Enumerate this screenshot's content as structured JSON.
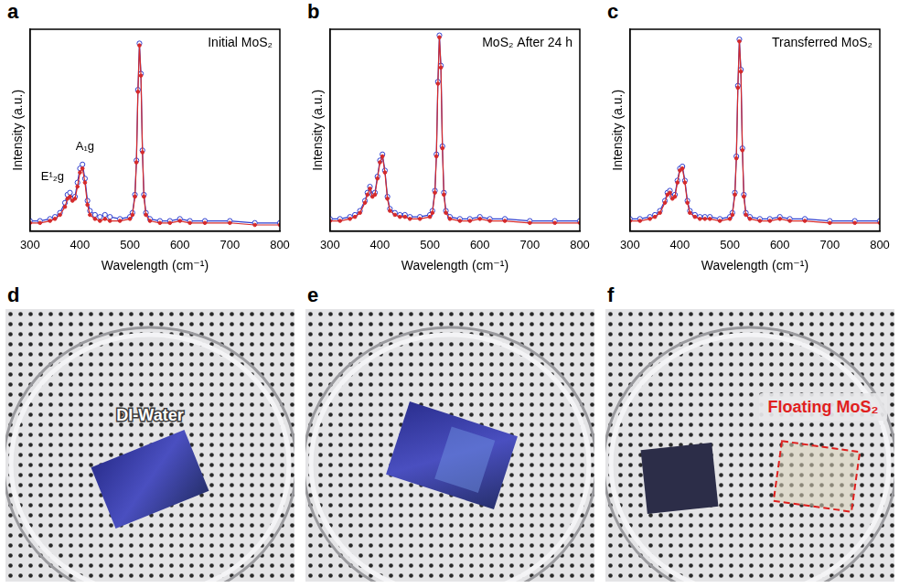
{
  "chart_data": [
    {
      "panel": "a",
      "type": "line",
      "title": "Initial MoS₂",
      "x_label": "Wavelength (cm⁻¹)",
      "y_label": "Intensity (a.u.)",
      "x": [
        300,
        320,
        340,
        350,
        360,
        370,
        375,
        380,
        385,
        390,
        395,
        400,
        405,
        410,
        415,
        420,
        430,
        440,
        450,
        460,
        480,
        500,
        505,
        510,
        513,
        516,
        519,
        522,
        525,
        528,
        532,
        540,
        560,
        580,
        600,
        620,
        650,
        700,
        750,
        800
      ],
      "series": [
        {
          "color": "#d62a2a",
          "marker": "circle",
          "line_style": "solid",
          "values": [
            0.04,
            0.04,
            0.05,
            0.06,
            0.08,
            0.12,
            0.16,
            0.17,
            0.15,
            0.16,
            0.22,
            0.29,
            0.31,
            0.24,
            0.13,
            0.08,
            0.06,
            0.05,
            0.06,
            0.05,
            0.05,
            0.06,
            0.08,
            0.17,
            0.34,
            0.69,
            0.92,
            0.77,
            0.39,
            0.17,
            0.08,
            0.05,
            0.04,
            0.04,
            0.05,
            0.04,
            0.04,
            0.04,
            0.03,
            0.03
          ]
        },
        {
          "color": "#2f3fcf",
          "marker": "open_circle",
          "line_style": "solid",
          "values": [
            0.05,
            0.05,
            0.06,
            0.07,
            0.09,
            0.14,
            0.18,
            0.19,
            0.16,
            0.17,
            0.24,
            0.31,
            0.33,
            0.26,
            0.15,
            0.1,
            0.08,
            0.07,
            0.08,
            0.07,
            0.06,
            0.07,
            0.09,
            0.18,
            0.35,
            0.7,
            0.93,
            0.78,
            0.4,
            0.18,
            0.09,
            0.06,
            0.05,
            0.05,
            0.06,
            0.05,
            0.05,
            0.05,
            0.04,
            0.04
          ]
        }
      ],
      "xlim": [
        300,
        800
      ],
      "xticks": [
        300,
        400,
        500,
        600,
        700,
        800
      ],
      "ylim": [
        0,
        1
      ],
      "tick_labels": "x",
      "grid": false,
      "annotations": [
        {
          "text": "E¹₂g",
          "x": 345,
          "y": 0.27
        },
        {
          "text": "A₁g",
          "x": 410,
          "y": 0.42
        }
      ]
    },
    {
      "panel": "b",
      "type": "line",
      "title": "MoS₂ After 24 h",
      "x_label": "Wavelength (cm⁻¹)",
      "y_label": "Intensity (a.u.)",
      "x": [
        300,
        320,
        340,
        350,
        360,
        370,
        375,
        380,
        385,
        390,
        395,
        400,
        405,
        410,
        415,
        420,
        430,
        440,
        450,
        460,
        480,
        500,
        505,
        510,
        513,
        516,
        519,
        522,
        525,
        528,
        532,
        540,
        560,
        580,
        600,
        620,
        650,
        700,
        750,
        800
      ],
      "series": [
        {
          "color": "#d62a2a",
          "marker": "circle",
          "line_style": "solid",
          "values": [
            0.05,
            0.05,
            0.06,
            0.07,
            0.09,
            0.14,
            0.18,
            0.21,
            0.17,
            0.18,
            0.26,
            0.34,
            0.37,
            0.29,
            0.16,
            0.1,
            0.08,
            0.07,
            0.07,
            0.06,
            0.06,
            0.07,
            0.09,
            0.19,
            0.37,
            0.73,
            0.96,
            0.81,
            0.41,
            0.18,
            0.09,
            0.06,
            0.05,
            0.05,
            0.06,
            0.05,
            0.05,
            0.04,
            0.04,
            0.04
          ]
        },
        {
          "color": "#2f3fcf",
          "marker": "open_circle",
          "line_style": "solid",
          "values": [
            0.06,
            0.06,
            0.07,
            0.08,
            0.1,
            0.15,
            0.19,
            0.22,
            0.18,
            0.19,
            0.27,
            0.35,
            0.38,
            0.3,
            0.17,
            0.11,
            0.09,
            0.08,
            0.08,
            0.07,
            0.07,
            0.08,
            0.1,
            0.2,
            0.38,
            0.74,
            0.97,
            0.82,
            0.42,
            0.19,
            0.1,
            0.07,
            0.06,
            0.06,
            0.07,
            0.06,
            0.06,
            0.05,
            0.05,
            0.05
          ]
        }
      ],
      "xlim": [
        300,
        800
      ],
      "xticks": [
        300,
        400,
        500,
        600,
        700,
        800
      ],
      "ylim": [
        0,
        1
      ],
      "tick_labels": "x",
      "grid": false
    },
    {
      "panel": "c",
      "type": "line",
      "title": "Transferred MoS₂",
      "x_label": "Wavelength (cm⁻¹)",
      "y_label": "Intensity (a.u.)",
      "x": [
        300,
        320,
        340,
        350,
        360,
        370,
        375,
        380,
        385,
        390,
        395,
        400,
        405,
        410,
        415,
        420,
        430,
        440,
        450,
        460,
        480,
        500,
        505,
        510,
        513,
        516,
        519,
        522,
        525,
        528,
        532,
        540,
        560,
        580,
        600,
        620,
        650,
        700,
        750,
        800
      ],
      "series": [
        {
          "color": "#d62a2a",
          "marker": "circle",
          "line_style": "solid",
          "values": [
            0.05,
            0.05,
            0.06,
            0.07,
            0.09,
            0.14,
            0.18,
            0.19,
            0.16,
            0.17,
            0.24,
            0.3,
            0.31,
            0.24,
            0.14,
            0.09,
            0.07,
            0.06,
            0.06,
            0.06,
            0.05,
            0.06,
            0.08,
            0.18,
            0.36,
            0.71,
            0.94,
            0.79,
            0.4,
            0.17,
            0.08,
            0.06,
            0.05,
            0.05,
            0.06,
            0.05,
            0.05,
            0.04,
            0.04,
            0.04
          ]
        },
        {
          "color": "#2f3fcf",
          "marker": "open_circle",
          "line_style": "solid",
          "values": [
            0.06,
            0.06,
            0.07,
            0.08,
            0.1,
            0.15,
            0.19,
            0.2,
            0.17,
            0.18,
            0.25,
            0.31,
            0.32,
            0.25,
            0.15,
            0.1,
            0.08,
            0.07,
            0.07,
            0.07,
            0.06,
            0.07,
            0.09,
            0.19,
            0.37,
            0.72,
            0.95,
            0.8,
            0.41,
            0.18,
            0.09,
            0.07,
            0.06,
            0.06,
            0.07,
            0.06,
            0.06,
            0.05,
            0.05,
            0.05
          ]
        }
      ],
      "xlim": [
        300,
        800
      ],
      "xticks": [
        300,
        400,
        500,
        600,
        700,
        800
      ],
      "ylim": [
        0,
        1
      ],
      "tick_labels": "x",
      "grid": false
    }
  ],
  "photos": [
    {
      "panel": "d",
      "label": "DI-Water"
    },
    {
      "panel": "e"
    },
    {
      "panel": "f",
      "label": "Floating MoS₂"
    }
  ]
}
